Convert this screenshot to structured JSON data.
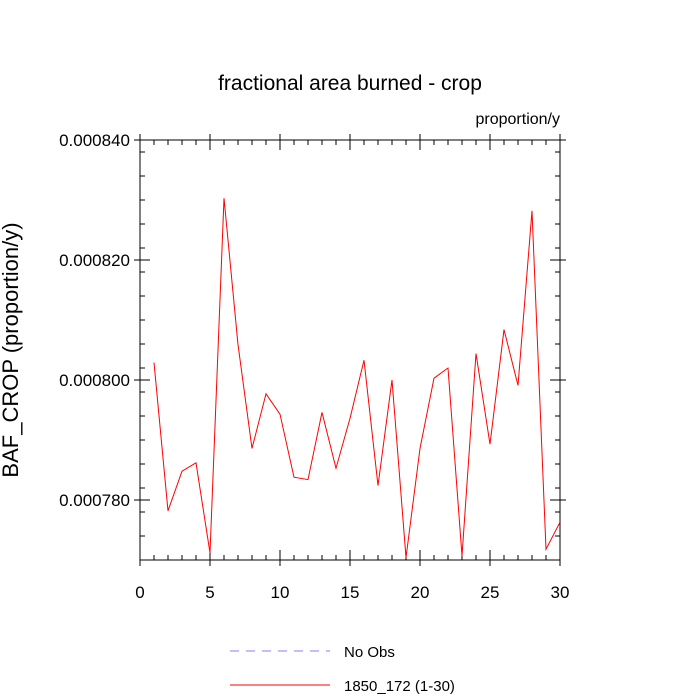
{
  "chart_data": {
    "type": "line",
    "title": "fractional area burned - crop",
    "units_label": "proportion/y",
    "ylabel": "BAF_CROP  (proportion/y)",
    "xlabel": "",
    "xlim": [
      0,
      30
    ],
    "ylim": [
      0.00077,
      0.00084
    ],
    "x_ticks": [
      0,
      5,
      10,
      15,
      20,
      25,
      30
    ],
    "x_tick_labels": [
      "0",
      "5",
      "10",
      "15",
      "20",
      "25",
      "30"
    ],
    "y_ticks": [
      0.00078,
      0.0008,
      0.00082,
      0.00084
    ],
    "y_tick_labels": [
      "0.000780",
      "0.000800",
      "0.000820",
      "0.000840"
    ],
    "x": [
      1,
      2,
      3,
      4,
      5,
      6,
      7,
      8,
      9,
      10,
      11,
      12,
      13,
      14,
      15,
      16,
      17,
      18,
      19,
      20,
      21,
      22,
      23,
      24,
      25,
      26,
      27,
      28,
      29,
      30
    ],
    "series": [
      {
        "name": "1850_172 (1-30)",
        "color": "#ff0000",
        "style": "solid",
        "values": [
          0.0008029,
          0.0007782,
          0.0007848,
          0.0007862,
          0.0007712,
          0.0008303,
          0.0008059,
          0.0007886,
          0.0007977,
          0.0007943,
          0.0007838,
          0.0007834,
          0.0007946,
          0.0007853,
          0.0007936,
          0.0008033,
          0.0007824,
          0.0008,
          0.0007704,
          0.0007886,
          0.0008003,
          0.000802,
          0.0007707,
          0.0008044,
          0.0007893,
          0.0008084,
          0.0007991,
          0.0008282,
          0.0007718,
          0.0007763
        ]
      }
    ],
    "legend": [
      {
        "label": "No Obs",
        "color": "#8080ff",
        "style": "dashed"
      },
      {
        "label": "1850_172 (1-30)",
        "color": "#ff0000",
        "style": "solid"
      }
    ],
    "legend_placement": "bottom-center",
    "grid": false
  }
}
